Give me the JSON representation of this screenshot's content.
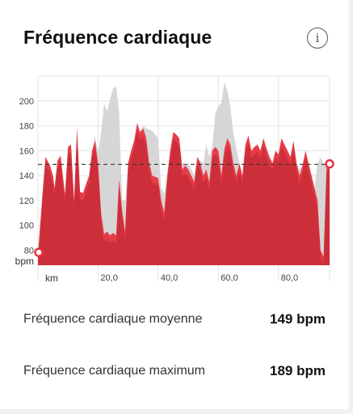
{
  "header": {
    "title": "Fréquence cardiaque",
    "info_icon": "info-icon",
    "info_glyph": "i"
  },
  "chart_data": {
    "type": "area",
    "x_unit_label": "km",
    "y_unit_label": "bpm",
    "xlim": [
      0,
      97
    ],
    "ylim": [
      68,
      220
    ],
    "x_ticks": [
      20,
      40,
      60,
      80
    ],
    "x_tick_labels": [
      "20,0",
      "40,0",
      "60,0",
      "80,0"
    ],
    "y_ticks": [
      80,
      100,
      120,
      140,
      160,
      180,
      200
    ],
    "y_tick_labels": [
      "80",
      "100",
      "120",
      "140",
      "160",
      "180",
      "200"
    ],
    "average_line": 149,
    "grid": true,
    "series": [
      {
        "x": [
          0,
          1.5,
          2.5,
          4,
          5,
          5.5,
          6.5,
          7.5,
          9,
          10,
          11,
          12,
          13,
          14,
          15,
          16,
          17,
          18,
          19,
          20,
          21,
          22,
          23,
          24,
          25,
          26,
          27,
          28,
          29,
          30,
          31,
          32,
          33,
          34,
          35,
          36,
          37,
          38,
          40,
          41,
          42,
          43,
          44,
          45,
          46,
          47,
          48,
          49,
          50,
          51,
          52,
          53,
          54,
          55,
          56,
          57,
          58,
          59,
          60,
          61,
          62,
          63,
          64,
          65,
          66,
          67,
          68,
          69,
          70,
          71,
          72,
          73,
          74,
          75,
          76,
          77,
          78,
          79,
          80,
          81,
          82,
          83,
          84,
          85,
          86,
          87,
          88,
          89,
          90,
          91,
          92,
          93,
          94,
          95,
          96,
          97
        ],
        "values": [
          77,
          125,
          155,
          148,
          140,
          130,
          152,
          156,
          125,
          163,
          165,
          120,
          178,
          127,
          126,
          133,
          140,
          160,
          172,
          158,
          175,
          198,
          192,
          201,
          210,
          212,
          190,
          120,
          120,
          150,
          160,
          168,
          183,
          175,
          180,
          178,
          177,
          176,
          170,
          130,
          125,
          140,
          160,
          175,
          173,
          170,
          150,
          148,
          150,
          145,
          140,
          155,
          152,
          150,
          165,
          155,
          164,
          190,
          196,
          198,
          215,
          208,
          195,
          174,
          162,
          150,
          140,
          165,
          172,
          160,
          163,
          165,
          160,
          170,
          162,
          155,
          150,
          160,
          157,
          170,
          165,
          160,
          155,
          168,
          150,
          145,
          148,
          160,
          150,
          140,
          130,
          150,
          155,
          150,
          148,
          152
        ],
        "color": "#d6d6d6"
      },
      {
        "x": [
          0,
          1.5,
          2.5,
          4,
          5,
          5.5,
          6.5,
          7.5,
          9,
          10,
          11,
          12,
          13,
          14,
          15,
          16,
          17,
          18,
          19,
          20,
          21,
          22,
          23,
          24,
          25,
          26,
          27,
          28,
          29,
          30,
          31,
          32,
          33,
          34,
          35,
          36,
          37,
          38,
          40,
          41,
          42,
          43,
          44,
          45,
          46,
          47,
          48,
          49,
          50,
          51,
          52,
          53,
          54,
          55,
          56,
          57,
          58,
          59,
          60,
          61,
          62,
          63,
          64,
          65,
          66,
          67,
          68,
          69,
          70,
          71,
          72,
          73,
          74,
          75,
          76,
          77,
          78,
          79,
          80,
          81,
          82,
          83,
          84,
          85,
          86,
          87,
          88,
          89,
          90,
          91,
          92,
          93,
          94,
          95,
          96,
          97
        ],
        "values": [
          77,
          125,
          155,
          148,
          140,
          130,
          152,
          156,
          125,
          163,
          165,
          120,
          178,
          127,
          126,
          133,
          140,
          160,
          168,
          150,
          110,
          93,
          95,
          92,
          94,
          92,
          137,
          112,
          95,
          150,
          160,
          168,
          182,
          175,
          178,
          170,
          150,
          140,
          138,
          120,
          110,
          140,
          160,
          175,
          173,
          170,
          145,
          148,
          145,
          140,
          135,
          155,
          150,
          140,
          145,
          135,
          160,
          163,
          160,
          140,
          161,
          170,
          165,
          150,
          140,
          150,
          140,
          165,
          172,
          160,
          163,
          165,
          160,
          170,
          162,
          155,
          150,
          160,
          157,
          170,
          165,
          160,
          155,
          168,
          150,
          140,
          148,
          160,
          150,
          140,
          130,
          120,
          80,
          75,
          148,
          152
        ],
        "color": "#e8343f"
      }
    ]
  },
  "stats": [
    {
      "label": "Fréquence cardiaque moyenne",
      "value": "149 bpm"
    },
    {
      "label": "Fréquence cardiaque maximum",
      "value": "189 bpm"
    }
  ]
}
